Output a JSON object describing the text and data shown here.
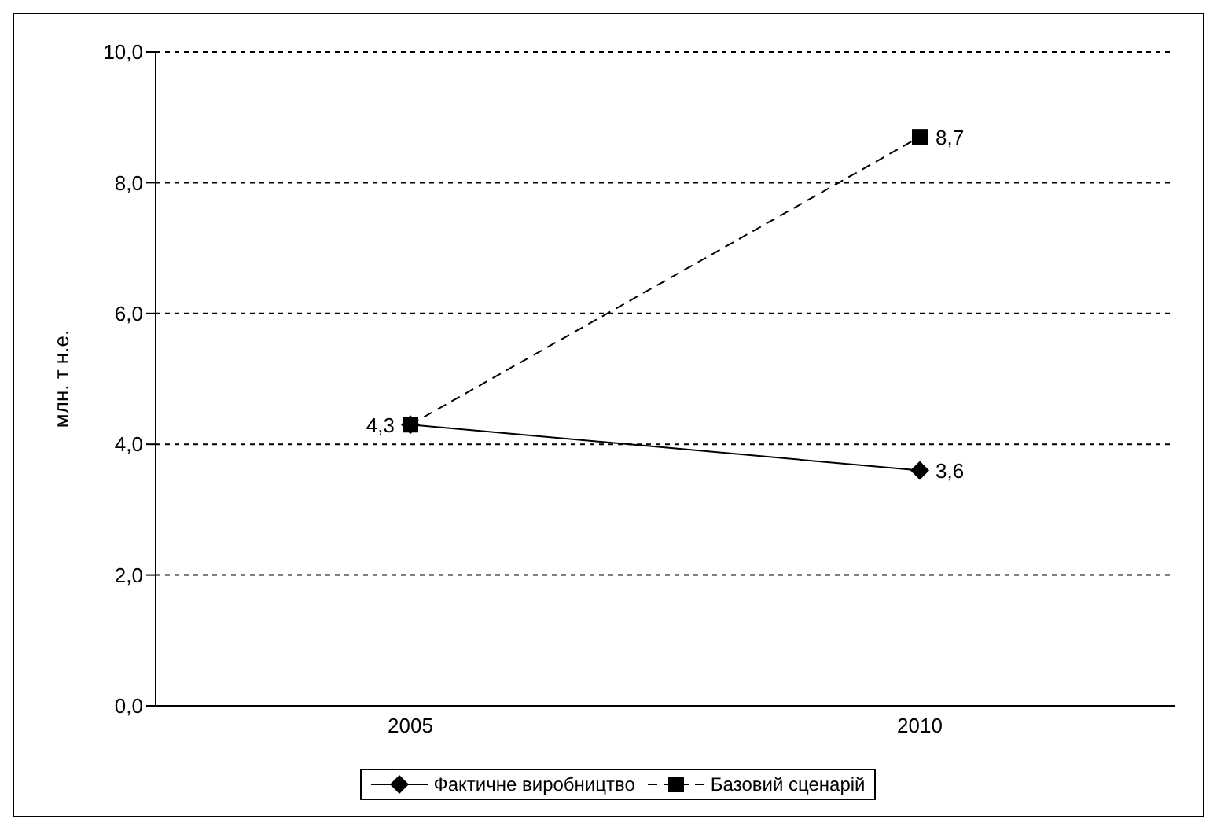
{
  "chart_data": {
    "type": "line",
    "ylabel": "млн. т н.е.",
    "categories": [
      "2005",
      "2010"
    ],
    "series": [
      {
        "name": "Фактичне виробництво",
        "color": "#000000",
        "values": [
          4.3,
          3.6
        ],
        "marker": "diamond",
        "line_style": "solid",
        "value_labels": [
          "4,3",
          "3,6"
        ]
      },
      {
        "name": "Базовий сценарій",
        "color": "#000000",
        "values": [
          4.3,
          8.7
        ],
        "marker": "square",
        "line_style": "dashed",
        "value_labels": [
          null,
          "8,7"
        ]
      }
    ],
    "ylim": [
      0,
      10
    ],
    "yticks": [
      {
        "value": 0,
        "label": "0,0"
      },
      {
        "value": 2,
        "label": "2,0"
      },
      {
        "value": 4,
        "label": "4,0"
      },
      {
        "value": 6,
        "label": "6,0"
      },
      {
        "value": 8,
        "label": "8,0"
      },
      {
        "value": 10,
        "label": "10,0"
      }
    ],
    "grid": "y",
    "legend": "bottom"
  }
}
